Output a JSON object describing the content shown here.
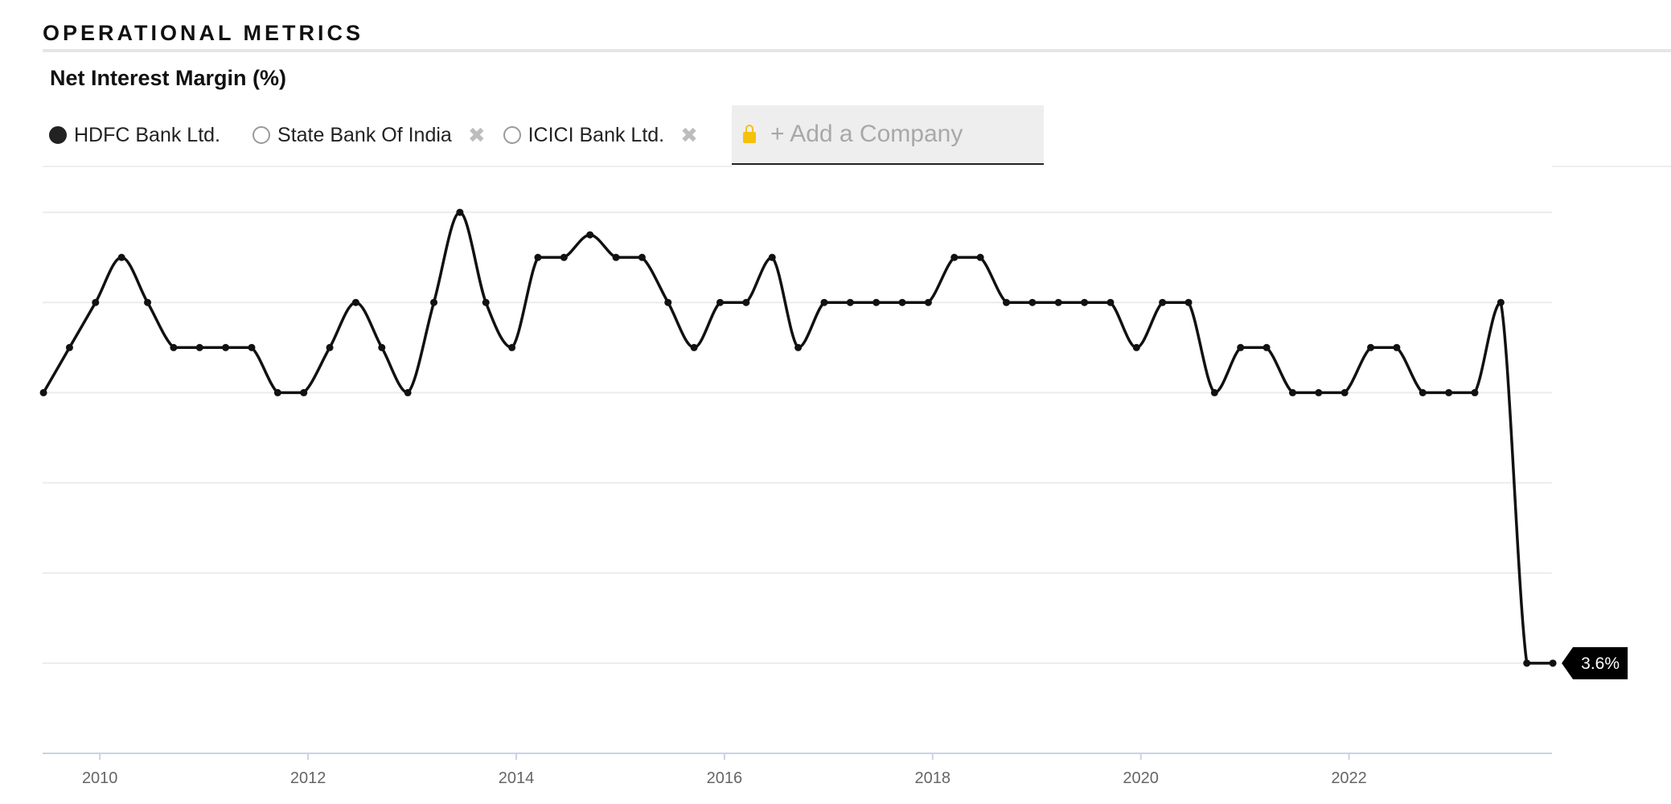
{
  "section": {
    "title": "OPERATIONAL METRICS"
  },
  "metric": {
    "title": "Net Interest Margin (%)"
  },
  "legend": {
    "items": [
      {
        "label": "HDFC Bank Ltd.",
        "selected": true
      },
      {
        "label": "State Bank Of India",
        "selected": false,
        "removable": true
      },
      {
        "label": "ICICI Bank Ltd.",
        "selected": false,
        "removable": true
      }
    ],
    "add_company_label": "+ Add a Company",
    "lock_icon": "lock-icon",
    "remove_icon": "close-icon"
  },
  "colors": {
    "line": "#111111",
    "grid": "#ececec",
    "axis": "#c6d4e6",
    "lock": "#f4c20d",
    "tooltip_bg": "#000000",
    "tooltip_fg": "#ffffff"
  },
  "chart_data": {
    "type": "line",
    "series": [
      {
        "name": "HDFC Bank Ltd.",
        "values": [
          [
            "2009-06",
            4.2
          ],
          [
            "2009-09",
            4.3
          ],
          [
            "2009-12",
            4.4
          ],
          [
            "2010-03",
            4.5
          ],
          [
            "2010-06",
            4.4
          ],
          [
            "2010-09",
            4.3
          ],
          [
            "2010-12",
            4.3
          ],
          [
            "2011-03",
            4.3
          ],
          [
            "2011-06",
            4.3
          ],
          [
            "2011-09",
            4.2
          ],
          [
            "2011-12",
            4.2
          ],
          [
            "2012-03",
            4.3
          ],
          [
            "2012-06",
            4.4
          ],
          [
            "2012-09",
            4.3
          ],
          [
            "2012-12",
            4.2
          ],
          [
            "2013-03",
            4.4
          ],
          [
            "2013-06",
            4.6
          ],
          [
            "2013-09",
            4.4
          ],
          [
            "2013-12",
            4.3
          ],
          [
            "2014-03",
            4.5
          ],
          [
            "2014-06",
            4.5
          ],
          [
            "2014-09",
            4.55
          ],
          [
            "2014-12",
            4.5
          ],
          [
            "2015-03",
            4.5
          ],
          [
            "2015-06",
            4.4
          ],
          [
            "2015-09",
            4.3
          ],
          [
            "2015-12",
            4.4
          ],
          [
            "2016-03",
            4.4
          ],
          [
            "2016-06",
            4.5
          ],
          [
            "2016-09",
            4.3
          ],
          [
            "2016-12",
            4.4
          ],
          [
            "2017-03",
            4.4
          ],
          [
            "2017-06",
            4.4
          ],
          [
            "2017-09",
            4.4
          ],
          [
            "2017-12",
            4.4
          ],
          [
            "2018-03",
            4.5
          ],
          [
            "2018-06",
            4.5
          ],
          [
            "2018-09",
            4.4
          ],
          [
            "2018-12",
            4.4
          ],
          [
            "2019-03",
            4.4
          ],
          [
            "2019-06",
            4.4
          ],
          [
            "2019-09",
            4.4
          ],
          [
            "2019-12",
            4.3
          ],
          [
            "2020-03",
            4.4
          ],
          [
            "2020-06",
            4.4
          ],
          [
            "2020-09",
            4.2
          ],
          [
            "2020-12",
            4.3
          ],
          [
            "2021-03",
            4.3
          ],
          [
            "2021-06",
            4.2
          ],
          [
            "2021-09",
            4.2
          ],
          [
            "2021-12",
            4.2
          ],
          [
            "2022-03",
            4.3
          ],
          [
            "2022-06",
            4.3
          ],
          [
            "2022-09",
            4.2
          ],
          [
            "2022-12",
            4.2
          ],
          [
            "2023-03",
            4.2
          ],
          [
            "2023-06",
            4.4
          ],
          [
            "2023-09",
            3.6
          ],
          [
            "2023-12",
            3.6
          ]
        ]
      }
    ],
    "x_tick_labels": [
      "2010",
      "2012",
      "2014",
      "2016",
      "2018",
      "2020",
      "2022"
    ],
    "ylim": [
      3.4,
      4.7
    ],
    "y_gridlines": [
      3.6,
      3.8,
      4.0,
      4.2,
      4.4,
      4.6
    ],
    "grid": true,
    "tooltip": {
      "label": "3.6%",
      "point": "last"
    }
  }
}
